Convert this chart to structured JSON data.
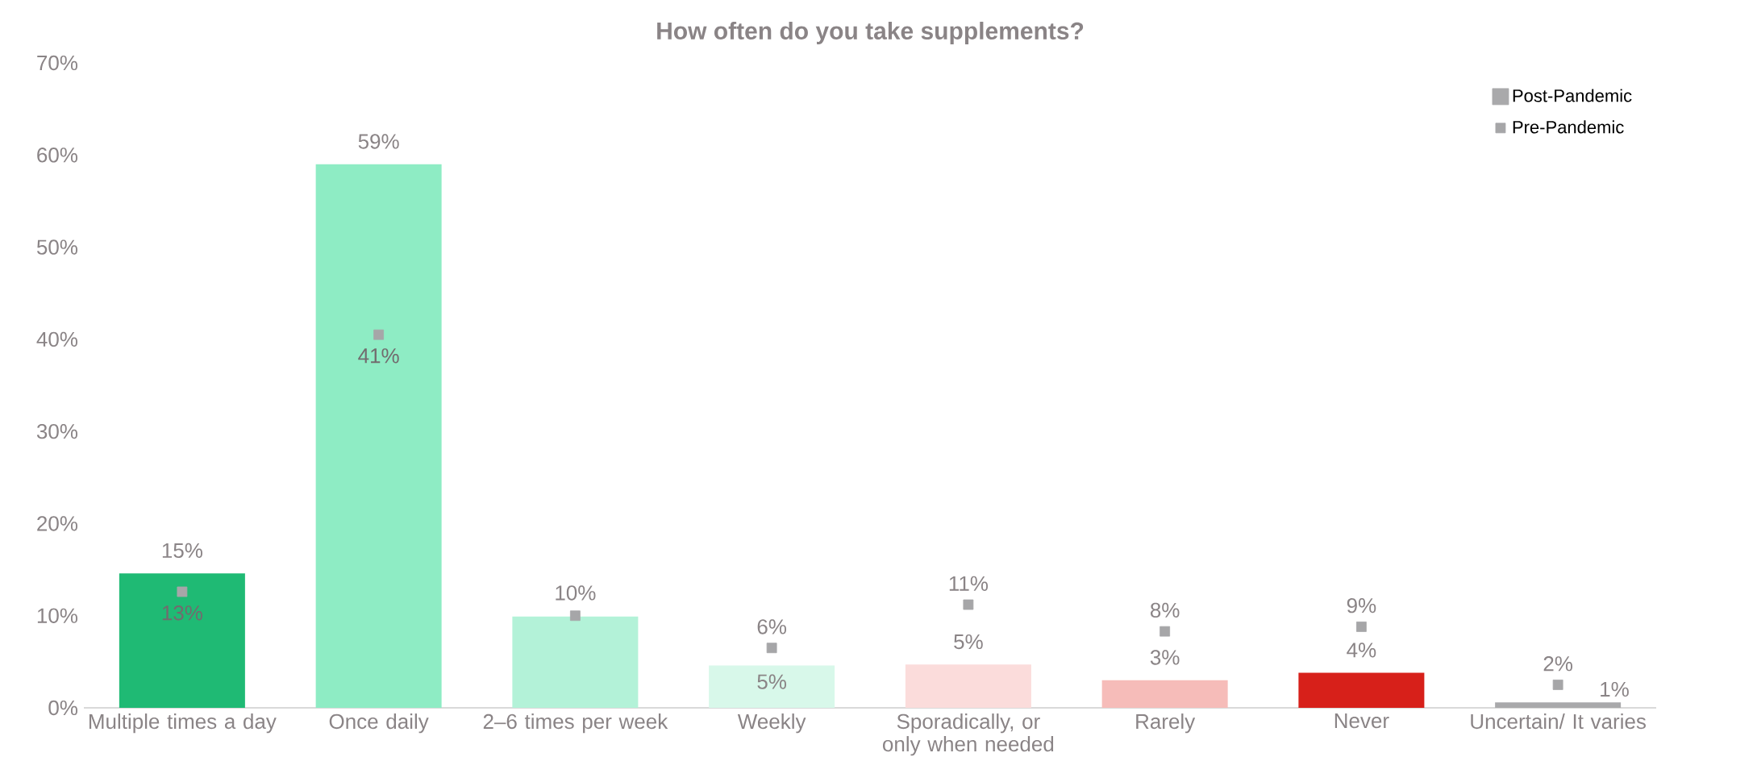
{
  "chart_data": {
    "type": "bar",
    "title": "How often do you take supplements?",
    "categories": [
      "Multiple times a day",
      "Once daily",
      "2–6 times per week",
      "Weekly",
      "Sporadically, or only when needed",
      "Rarely",
      "Never",
      "Uncertain/ It varies"
    ],
    "series": [
      {
        "name": "Post-Pandemic",
        "type": "bar",
        "color": "#a9a9ab",
        "colors": [
          "#1fba74",
          "#8eecc4",
          "#b3f2d8",
          "#d8f8ea",
          "#fbdcdb",
          "#f6bcb9",
          "#d7201a",
          "#a9a9ab"
        ],
        "values": [
          14.6,
          59,
          9.9,
          4.6,
          4.7,
          3.0,
          3.8,
          0.6
        ],
        "value_labels": [
          "15%",
          "59%",
          "10%",
          "5%",
          "5%",
          "3%",
          "4%",
          "1%"
        ]
      },
      {
        "name": "Pre-Pandemic",
        "type": "scatter",
        "color": "#a6a6a8",
        "values": [
          12.6,
          40.5,
          10.0,
          6.5,
          11.2,
          8.3,
          8.8,
          2.5
        ],
        "value_labels": [
          "13%",
          "41%",
          null,
          "6%",
          "11%",
          "8%",
          "9%",
          "2%"
        ]
      }
    ],
    "ylim": [
      0,
      70
    ],
    "yticks": [
      {
        "value": 0,
        "label": "0%"
      },
      {
        "value": 10,
        "label": "10%"
      },
      {
        "value": 20,
        "label": "20%"
      },
      {
        "value": 30,
        "label": "30%"
      },
      {
        "value": 40,
        "label": "40%"
      },
      {
        "value": 50,
        "label": "50%"
      },
      {
        "value": 60,
        "label": "60%"
      },
      {
        "value": 70,
        "label": "70%"
      }
    ],
    "grid": false,
    "legend": "top right"
  }
}
